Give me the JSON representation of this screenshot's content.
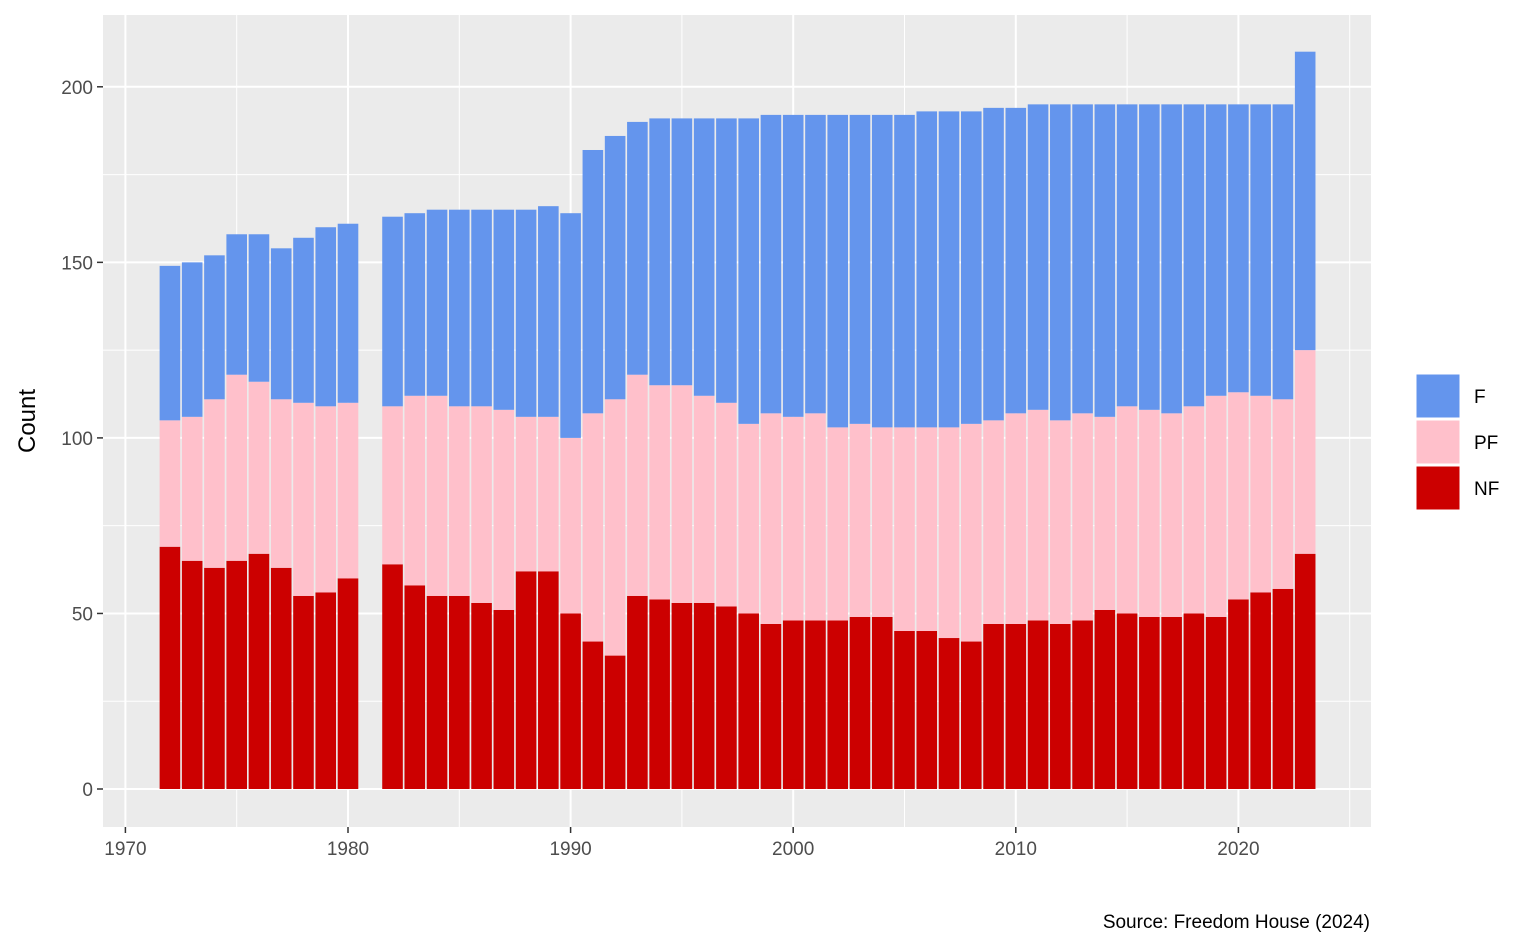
{
  "chart_data": {
    "type": "bar",
    "stacked": true,
    "title": "",
    "xlabel": "",
    "ylabel": "Count",
    "xlim": [
      1970,
      2025
    ],
    "ylim": [
      0,
      215
    ],
    "x_ticks": [
      1970,
      1980,
      1990,
      2000,
      2010,
      2020
    ],
    "y_ticks": [
      0,
      50,
      100,
      150,
      200
    ],
    "grid": true,
    "legend_position": "right",
    "caption": "Source: Freedom House (2024)",
    "x": [
      1972,
      1973,
      1974,
      1975,
      1976,
      1977,
      1978,
      1979,
      1980,
      1982,
      1983,
      1984,
      1985,
      1986,
      1987,
      1988,
      1989,
      1990,
      1991,
      1992,
      1993,
      1994,
      1995,
      1996,
      1997,
      1998,
      1999,
      2000,
      2001,
      2002,
      2003,
      2004,
      2005,
      2006,
      2007,
      2008,
      2009,
      2010,
      2011,
      2012,
      2013,
      2014,
      2015,
      2016,
      2017,
      2018,
      2019,
      2020,
      2021,
      2022,
      2023
    ],
    "series": [
      {
        "name": "NF",
        "color": "#cc0000",
        "values": [
          69,
          65,
          63,
          65,
          67,
          63,
          55,
          56,
          60,
          64,
          58,
          55,
          55,
          53,
          51,
          62,
          62,
          50,
          42,
          38,
          55,
          54,
          53,
          53,
          52,
          50,
          47,
          48,
          48,
          48,
          49,
          49,
          45,
          45,
          43,
          42,
          47,
          47,
          48,
          47,
          48,
          51,
          50,
          49,
          49,
          50,
          49,
          54,
          56,
          57,
          67
        ]
      },
      {
        "name": "PF",
        "color": "#ffc0cb",
        "values": [
          36,
          41,
          48,
          53,
          49,
          48,
          55,
          53,
          50,
          45,
          54,
          57,
          54,
          56,
          57,
          44,
          44,
          50,
          65,
          73,
          63,
          61,
          62,
          59,
          58,
          54,
          60,
          58,
          59,
          55,
          55,
          54,
          58,
          58,
          60,
          62,
          58,
          60,
          60,
          58,
          59,
          55,
          59,
          59,
          58,
          59,
          63,
          59,
          56,
          54,
          58
        ]
      },
      {
        "name": "F",
        "color": "#6495ed",
        "values": [
          44,
          44,
          41,
          40,
          42,
          43,
          47,
          51,
          51,
          54,
          52,
          53,
          56,
          56,
          57,
          59,
          60,
          64,
          75,
          75,
          72,
          76,
          76,
          79,
          81,
          87,
          85,
          86,
          85,
          89,
          88,
          89,
          89,
          90,
          90,
          89,
          89,
          87,
          87,
          90,
          88,
          89,
          86,
          87,
          88,
          86,
          83,
          82,
          83,
          84,
          85
        ]
      }
    ],
    "legend": [
      {
        "label": "F",
        "color": "#6495ed"
      },
      {
        "label": "PF",
        "color": "#ffc0cb"
      },
      {
        "label": "NF",
        "color": "#cc0000"
      }
    ],
    "panel_background": "#ebebeb",
    "grid_color": "#ffffff"
  }
}
